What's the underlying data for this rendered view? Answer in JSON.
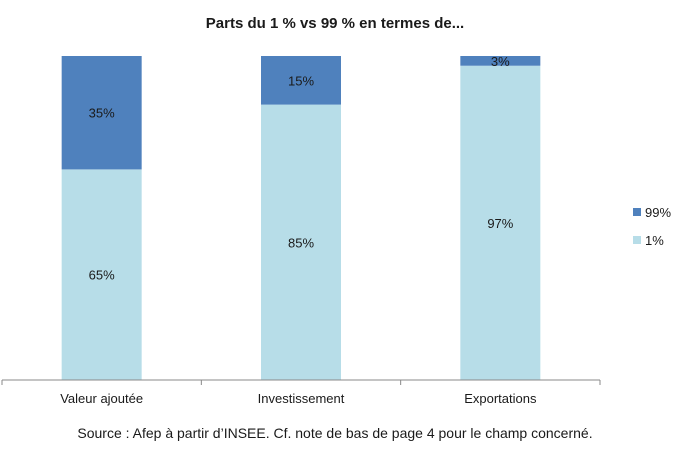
{
  "chart_data": {
    "type": "bar",
    "stacked": true,
    "title": "Parts du 1 % vs 99 % en termes de...",
    "categories": [
      "Valeur ajoutée",
      "Investissement",
      "Exportations"
    ],
    "series": [
      {
        "name": "1%",
        "values": [
          65,
          85,
          97
        ],
        "labels": [
          "65%",
          "85%",
          "97%"
        ],
        "color": "#b7dde8"
      },
      {
        "name": "99%",
        "values": [
          35,
          15,
          3
        ],
        "labels": [
          "35%",
          "15%",
          "3%"
        ],
        "color": "#4f81bd"
      }
    ],
    "ylim": [
      0,
      100
    ],
    "grid": false,
    "legend": "right",
    "legend_order": [
      "99%",
      "1%"
    ]
  },
  "source": "Source : Afep à partir d’INSEE. Cf. note de bas de page 4 pour le champ concerné."
}
